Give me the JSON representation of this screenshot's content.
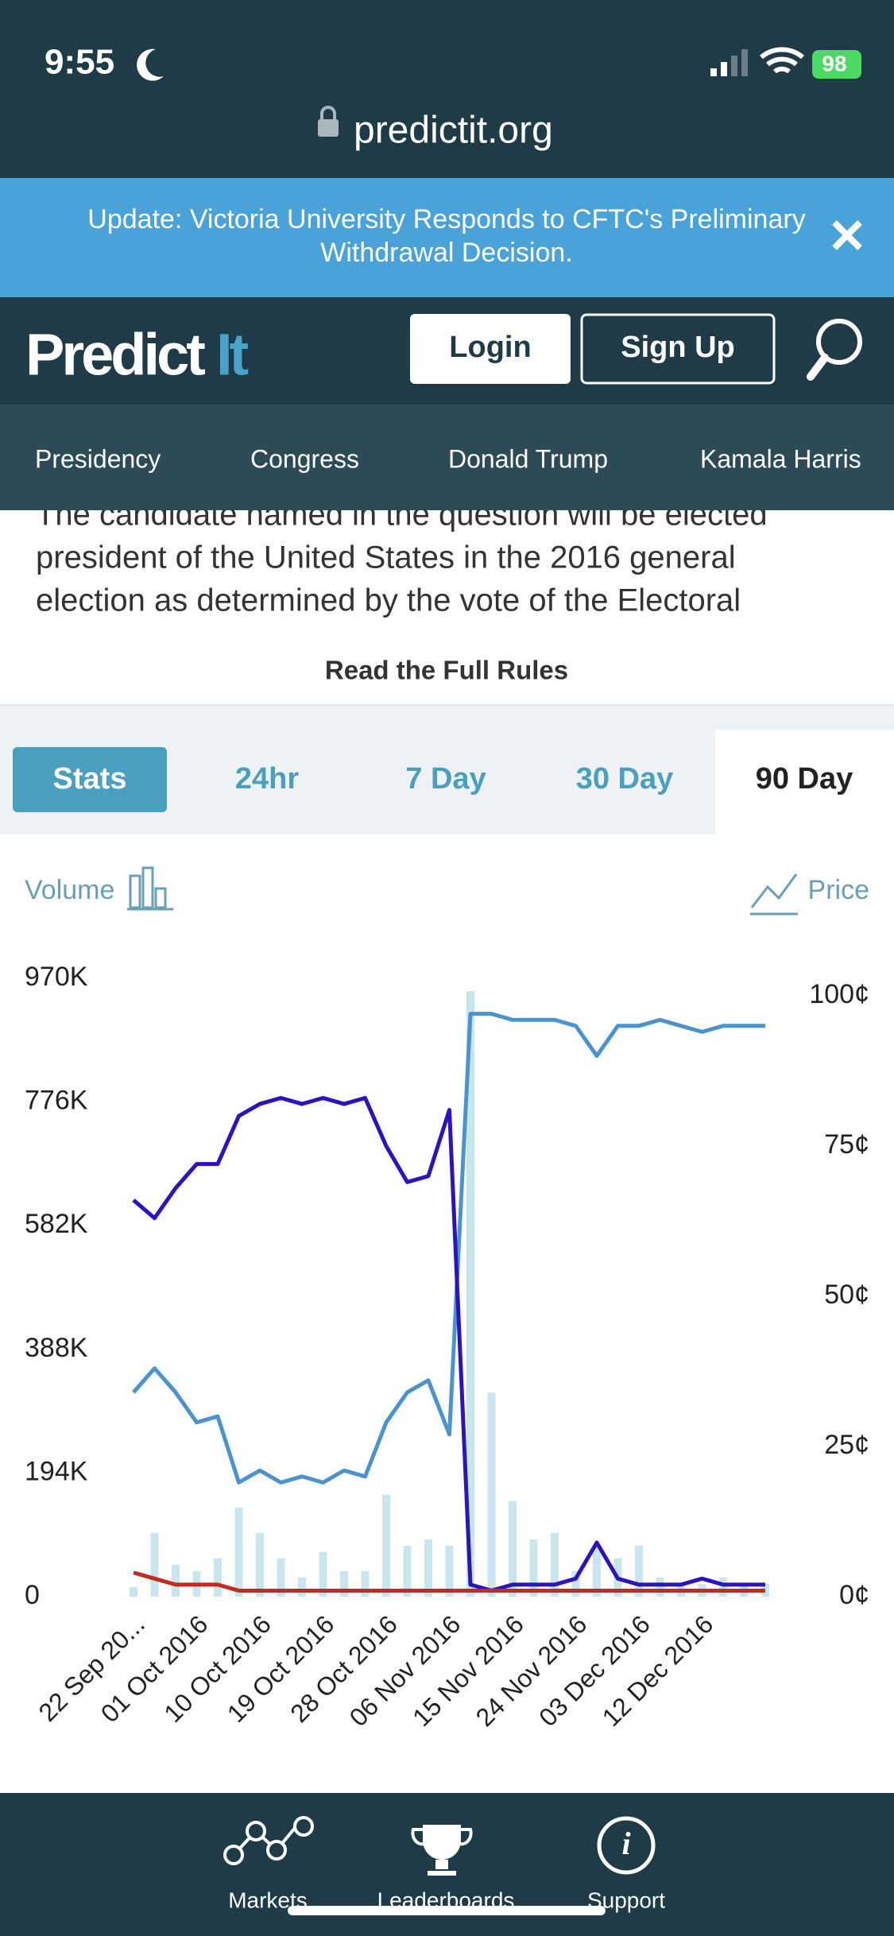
{
  "status_bar": {
    "time": "9:55",
    "battery": "98",
    "url": "predictit.org"
  },
  "banner": {
    "lines": [
      "Update: Victoria University Responds to CFTC's Preliminary",
      "Withdrawal Decision."
    ]
  },
  "header": {
    "logo": [
      "Predict",
      "It"
    ],
    "login": "Login",
    "signup": "Sign Up"
  },
  "nav": [
    "Presidency",
    "Congress",
    "Donald Trump",
    "Kamala Harris"
  ],
  "rules": {
    "lines": [
      "The candidate named in the question will be elected",
      "president of the United States in the 2016 general",
      "election as determined by the vote of the Electoral"
    ],
    "link": "Read the Full Rules"
  },
  "tabs": [
    "Stats",
    "24hr",
    "7 Day",
    "30 Day",
    "90 Day"
  ],
  "chart_data": {
    "type": "line",
    "y_label": "Volume",
    "y2_label": "Price",
    "categories": [
      "22 Sep 20...",
      null,
      null,
      "01 Oct 2016",
      null,
      null,
      "10 Oct 2016",
      null,
      null,
      "19 Oct 2016",
      null,
      null,
      "28 Oct 2016",
      null,
      null,
      "06 Nov 2016",
      null,
      null,
      "15 Nov 2016",
      null,
      null,
      "24 Nov 2016",
      null,
      null,
      "03 Dec 2016",
      null,
      null,
      "12 Dec 2016",
      null,
      null,
      null
    ],
    "ylim": [
      0,
      970000
    ],
    "yticks": [
      {
        "value": 0,
        "label": "0"
      },
      {
        "value": 194000,
        "label": "194K"
      },
      {
        "value": 388000,
        "label": "388K"
      },
      {
        "value": 582000,
        "label": "582K"
      },
      {
        "value": 776000,
        "label": "776K"
      },
      {
        "value": 970000,
        "label": "970K"
      }
    ],
    "y2lim": [
      0,
      100
    ],
    "y2ticks": [
      {
        "value": 0,
        "label": "0¢"
      },
      {
        "value": 25,
        "label": "25¢"
      },
      {
        "value": 50,
        "label": "50¢"
      },
      {
        "value": 75,
        "label": "75¢"
      },
      {
        "value": 100,
        "label": "100¢"
      }
    ],
    "series": [
      {
        "type": "bar",
        "axis": "y",
        "color": "#c9e6ee",
        "values": [
          15000,
          100000,
          50000,
          40000,
          60000,
          140000,
          100000,
          60000,
          30000,
          70000,
          40000,
          40000,
          160000,
          80000,
          90000,
          80000,
          950000,
          320000,
          150000,
          90000,
          100000,
          40000,
          80000,
          60000,
          80000,
          30000,
          20000,
          20000,
          30000,
          20000,
          20000
        ]
      },
      {
        "type": "line",
        "axis": "y2",
        "color": "#4a93cf",
        "values": [
          34,
          38,
          34,
          29,
          30,
          19,
          21,
          19,
          20,
          19,
          21,
          20,
          29,
          34,
          36,
          27,
          97,
          97,
          96,
          96,
          96,
          95,
          90,
          95,
          95,
          96,
          95,
          94,
          95,
          95,
          95
        ]
      },
      {
        "type": "line",
        "axis": "y2",
        "color": "#2a14bd",
        "values": [
          66,
          63,
          68,
          72,
          72,
          80,
          82,
          83,
          82,
          83,
          82,
          83,
          75,
          69,
          70,
          81,
          2,
          1,
          2,
          2,
          2,
          3,
          9,
          3,
          2,
          2,
          2,
          3,
          2,
          2,
          2
        ]
      },
      {
        "type": "line",
        "axis": "y2",
        "color": "#c22a22",
        "values": [
          4,
          3,
          2,
          2,
          2,
          1,
          1,
          1,
          1,
          1,
          1,
          1,
          1,
          1,
          1,
          1,
          1,
          1,
          1,
          1,
          1,
          1,
          1,
          1,
          1,
          1,
          1,
          1,
          1,
          1,
          1
        ]
      }
    ]
  },
  "bottom_nav": [
    "Markets",
    "Leaderboards",
    "Support"
  ]
}
